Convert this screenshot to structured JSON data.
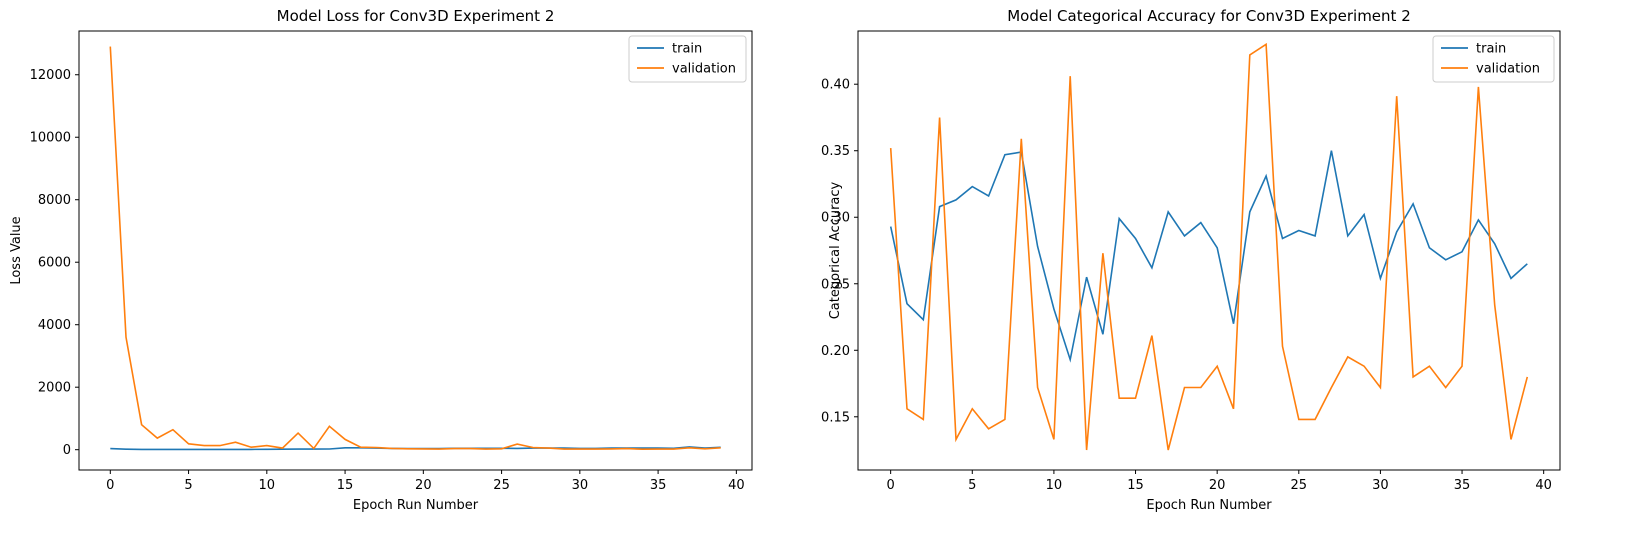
{
  "chart_data": [
    {
      "type": "line",
      "title": "Model Loss for Conv3D Experiment 2",
      "xlabel": "Epoch Run Number",
      "ylabel": "Loss Value",
      "xlim": [
        -2,
        41
      ],
      "ylim": [
        -650,
        13400
      ],
      "xticks": [
        0,
        5,
        10,
        15,
        20,
        25,
        30,
        35,
        40
      ],
      "yticks": [
        0,
        2000,
        4000,
        6000,
        8000,
        10000,
        12000
      ],
      "legend_position": "top-right",
      "grid": false,
      "series": [
        {
          "name": "train",
          "color": "#1f77b4",
          "x": [
            0,
            1,
            2,
            3,
            4,
            5,
            6,
            7,
            8,
            9,
            10,
            11,
            12,
            13,
            14,
            15,
            16,
            17,
            18,
            19,
            20,
            21,
            22,
            23,
            24,
            25,
            26,
            27,
            28,
            29,
            30,
            31,
            32,
            33,
            34,
            35,
            36,
            37,
            38,
            39
          ],
          "values": [
            35,
            15,
            10,
            8,
            8,
            8,
            8,
            8,
            8,
            10,
            12,
            15,
            18,
            20,
            22,
            60,
            60,
            50,
            40,
            35,
            35,
            35,
            45,
            45,
            45,
            45,
            40,
            50,
            50,
            55,
            40,
            40,
            50,
            55,
            50,
            50,
            45,
            90,
            55,
            75
          ]
        },
        {
          "name": "validation",
          "color": "#ff7f0e",
          "x": [
            0,
            1,
            2,
            3,
            4,
            5,
            6,
            7,
            8,
            9,
            10,
            11,
            12,
            13,
            14,
            15,
            16,
            17,
            18,
            19,
            20,
            21,
            22,
            23,
            24,
            25,
            26,
            27,
            28,
            29,
            30,
            31,
            32,
            33,
            34,
            35,
            36,
            37,
            38,
            39
          ],
          "values": [
            12900,
            3600,
            800,
            370,
            640,
            190,
            130,
            130,
            240,
            80,
            130,
            50,
            530,
            40,
            750,
            330,
            80,
            70,
            40,
            30,
            25,
            20,
            35,
            35,
            20,
            30,
            180,
            70,
            50,
            20,
            20,
            20,
            25,
            35,
            15,
            20,
            20,
            60,
            30,
            60
          ]
        }
      ]
    },
    {
      "type": "line",
      "title": "Model Categorical Accuracy for Conv3D Experiment 2",
      "xlabel": "Epoch Run Number",
      "ylabel": "Categorical Accuracy",
      "xlim": [
        -2,
        41
      ],
      "ylim": [
        0.11,
        0.44
      ],
      "xticks": [
        0,
        5,
        10,
        15,
        20,
        25,
        30,
        35,
        40
      ],
      "yticks": [
        0.15,
        0.2,
        0.25,
        0.3,
        0.35,
        0.4
      ],
      "tick_labels": [
        "0.15",
        "0.20",
        "0.25",
        "0.30",
        "0.35",
        "0.40"
      ],
      "legend_position": "top-right",
      "grid": false,
      "series": [
        {
          "name": "train",
          "color": "#1f77b4",
          "x": [
            0,
            1,
            2,
            3,
            4,
            5,
            6,
            7,
            8,
            9,
            10,
            11,
            12,
            13,
            14,
            15,
            16,
            17,
            18,
            19,
            20,
            21,
            22,
            23,
            24,
            25,
            26,
            27,
            28,
            29,
            30,
            31,
            32,
            33,
            34,
            35,
            36,
            37,
            38,
            39
          ],
          "values": [
            0.293,
            0.235,
            0.223,
            0.308,
            0.313,
            0.323,
            0.316,
            0.347,
            0.349,
            0.278,
            0.231,
            0.193,
            0.255,
            0.212,
            0.299,
            0.284,
            0.262,
            0.304,
            0.286,
            0.296,
            0.277,
            0.22,
            0.304,
            0.331,
            0.284,
            0.29,
            0.286,
            0.35,
            0.286,
            0.302,
            0.254,
            0.289,
            0.31,
            0.277,
            0.268,
            0.274,
            0.298,
            0.28,
            0.254,
            0.265
          ]
        },
        {
          "name": "validation",
          "color": "#ff7f0e",
          "x": [
            0,
            1,
            2,
            3,
            4,
            5,
            6,
            7,
            8,
            9,
            10,
            11,
            12,
            13,
            14,
            15,
            16,
            17,
            18,
            19,
            20,
            21,
            22,
            23,
            24,
            25,
            26,
            27,
            28,
            29,
            30,
            31,
            32,
            33,
            34,
            35,
            36,
            37,
            38,
            39
          ],
          "values": [
            0.352,
            0.156,
            0.148,
            0.375,
            0.133,
            0.156,
            0.141,
            0.148,
            0.359,
            0.172,
            0.133,
            0.406,
            0.125,
            0.273,
            0.164,
            0.164,
            0.211,
            0.125,
            0.172,
            0.172,
            0.188,
            0.156,
            0.422,
            0.43,
            0.203,
            0.148,
            0.148,
            0.172,
            0.195,
            0.188,
            0.172,
            0.391,
            0.18,
            0.188,
            0.172,
            0.188,
            0.398,
            0.234,
            0.133,
            0.18
          ]
        }
      ]
    }
  ]
}
